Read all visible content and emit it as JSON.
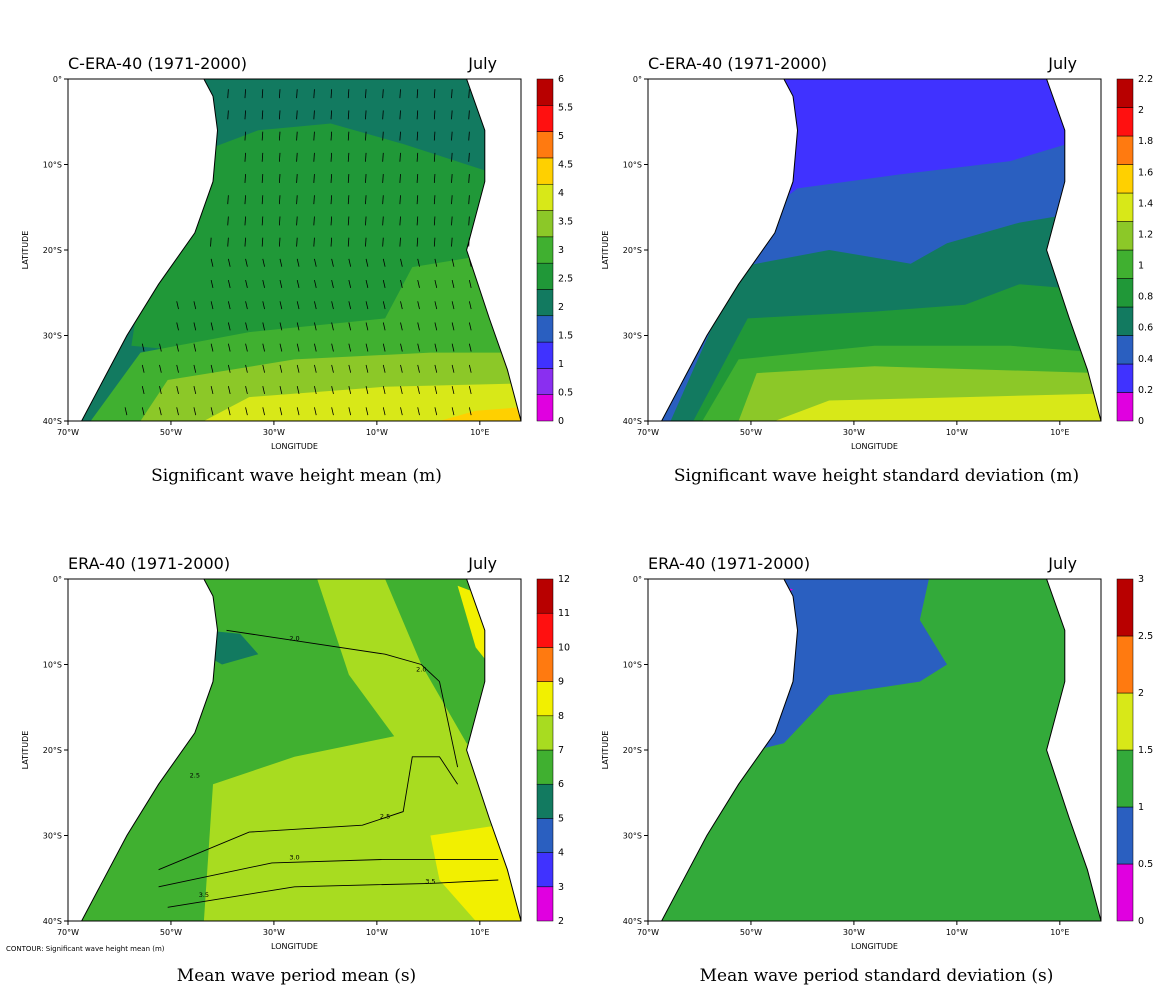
{
  "figure": {
    "panels": [
      {
        "id": "swh-mean",
        "header_left": "C-ERA-40 (1971-2000)",
        "header_right": "July",
        "caption": "Significant wave height mean (m)",
        "xlabel": "LONGITUDE",
        "ylabel": "LATITUDE",
        "xticks": [
          "70°W",
          "50°W",
          "30°W",
          "10°W",
          "10°E"
        ],
        "yticks": [
          "0°",
          "10°S",
          "20°S",
          "30°S",
          "40°S"
        ],
        "colorbar": {
          "levels": [
            "0",
            "0.5",
            "1",
            "1.5",
            "2",
            "2.5",
            "3",
            "3.5",
            "4",
            "4.5",
            "5",
            "5.5",
            "6"
          ],
          "colors": [
            "#e000e0",
            "#8a2ff0",
            "#4032ff",
            "#2a5fc0",
            "#127a60",
            "#209838",
            "#40b030",
            "#8cc828",
            "#d8e818",
            "#ffd000",
            "#ff7a10",
            "#ff1010",
            "#b80000"
          ]
        },
        "has_vectors": true,
        "footnote": ""
      },
      {
        "id": "swh-std",
        "header_left": "C-ERA-40 (1971-2000)",
        "header_right": "July",
        "caption": "Significant wave height standard deviation (m)",
        "xlabel": "LONGITUDE",
        "ylabel": "LATITUDE",
        "xticks": [
          "70°W",
          "50°W",
          "30°W",
          "10°W",
          "10°E"
        ],
        "yticks": [
          "0°",
          "10°S",
          "20°S",
          "30°S",
          "40°S"
        ],
        "colorbar": {
          "levels": [
            "0",
            "0.2",
            "0.4",
            "0.6",
            "0.8",
            "1",
            "1.2",
            "1.4",
            "1.6",
            "1.8",
            "2",
            "2.2"
          ],
          "colors": [
            "#e000e0",
            "#4032ff",
            "#2a5fc0",
            "#127a60",
            "#209838",
            "#40b030",
            "#8cc828",
            "#d8e818",
            "#ffd000",
            "#ff7a10",
            "#ff1010",
            "#b80000"
          ]
        },
        "has_vectors": false,
        "footnote": ""
      },
      {
        "id": "mwp-mean",
        "header_left": "ERA-40 (1971-2000)",
        "header_right": "July",
        "caption": "Mean wave period mean (s)",
        "xlabel": "LONGITUDE",
        "ylabel": "LATITUDE",
        "xticks": [
          "70°W",
          "50°W",
          "30°W",
          "10°W",
          "10°E"
        ],
        "yticks": [
          "0°",
          "10°S",
          "20°S",
          "30°S",
          "40°S"
        ],
        "colorbar": {
          "levels": [
            "2",
            "3",
            "4",
            "5",
            "6",
            "7",
            "8",
            "9",
            "10",
            "11",
            "12"
          ],
          "colors": [
            "#e000e0",
            "#4032ff",
            "#2a5fc0",
            "#127a60",
            "#40b030",
            "#a8dc20",
            "#f2f000",
            "#ff7a10",
            "#ff1010",
            "#b80000"
          ]
        },
        "has_vectors": false,
        "footnote": "CONTOUR: Significant wave height mean (m)",
        "contour_labels": [
          "2.0",
          "2.0",
          "2.5",
          "2.5",
          "3.0",
          "3.5",
          "3.5"
        ]
      },
      {
        "id": "mwp-std",
        "header_left": "ERA-40 (1971-2000)",
        "header_right": "July",
        "caption": "Mean wave period standard deviation (s)",
        "xlabel": "LONGITUDE",
        "ylabel": "LATITUDE",
        "xticks": [
          "70°W",
          "50°W",
          "30°W",
          "10°W",
          "10°E"
        ],
        "yticks": [
          "0°",
          "10°S",
          "20°S",
          "30°S",
          "40°S"
        ],
        "colorbar": {
          "levels": [
            "0",
            "0.5",
            "1",
            "1.5",
            "2",
            "2.5",
            "3"
          ],
          "colors": [
            "#e000e0",
            "#2a5fc0",
            "#33aa3a",
            "#d8e818",
            "#ff7a10",
            "#b80000"
          ]
        },
        "has_vectors": false,
        "footnote": ""
      }
    ]
  },
  "chart_data": [
    {
      "type": "heatmap",
      "title": "Significant wave height mean (m)",
      "subtitle": "C-ERA-40 (1971-2000) July",
      "xlabel": "LONGITUDE",
      "ylabel": "LATITUDE",
      "xlim": [
        "70°W",
        "18°E"
      ],
      "ylim": [
        "40°S",
        "0°"
      ],
      "colorbar_levels": [
        0,
        0.5,
        1,
        1.5,
        2,
        2.5,
        3,
        3.5,
        4,
        4.5,
        5,
        5.5,
        6
      ],
      "value_range_shown": [
        1.5,
        5
      ],
      "overlay": "mean wave direction vectors"
    },
    {
      "type": "heatmap",
      "title": "Significant wave height standard deviation (m)",
      "subtitle": "C-ERA-40 (1971-2000) July",
      "xlabel": "LONGITUDE",
      "ylabel": "LATITUDE",
      "xlim": [
        "70°W",
        "18°E"
      ],
      "ylim": [
        "40°S",
        "0°"
      ],
      "colorbar_levels": [
        0,
        0.2,
        0.4,
        0.6,
        0.8,
        1,
        1.2,
        1.4,
        1.6,
        1.8,
        2,
        2.2
      ],
      "value_range_shown": [
        0.2,
        1.6
      ]
    },
    {
      "type": "heatmap",
      "title": "Mean wave period mean (s)",
      "subtitle": "ERA-40 (1971-2000) July",
      "xlabel": "LONGITUDE",
      "ylabel": "LATITUDE",
      "xlim": [
        "70°W",
        "18°E"
      ],
      "ylim": [
        "40°S",
        "0°"
      ],
      "colorbar_levels": [
        2,
        3,
        4,
        5,
        6,
        7,
        8,
        9,
        10,
        11,
        12
      ],
      "value_range_shown": [
        5,
        9
      ],
      "contour_overlay": "Significant wave height mean (m)",
      "contour_levels": [
        2.0,
        2.5,
        3.0,
        3.5
      ]
    },
    {
      "type": "heatmap",
      "title": "Mean wave period standard deviation (s)",
      "subtitle": "ERA-40 (1971-2000) July",
      "xlabel": "LONGITUDE",
      "ylabel": "LATITUDE",
      "xlim": [
        "70°W",
        "18°E"
      ],
      "ylim": [
        "40°S",
        "0°"
      ],
      "colorbar_levels": [
        0,
        0.5,
        1,
        1.5,
        2,
        2.5,
        3
      ],
      "value_range_shown": [
        0,
        1.5
      ]
    }
  ]
}
